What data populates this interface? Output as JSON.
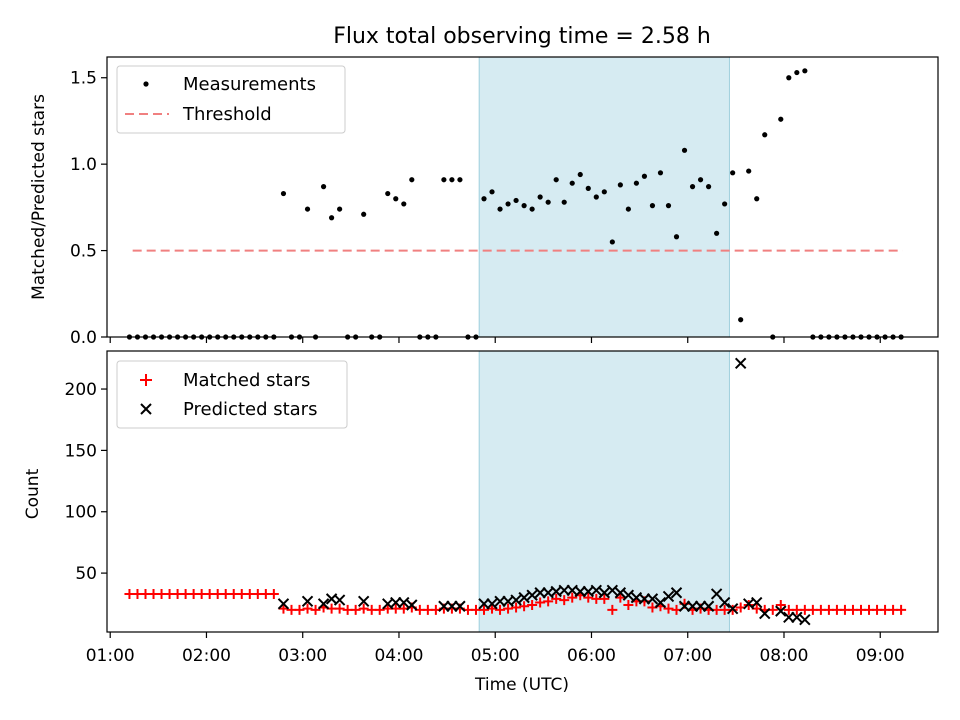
{
  "title": "Flux total observing time = 2.58 h",
  "chart_data": [
    {
      "type": "scatter",
      "panel": "top",
      "ylabel": "Matched/Predicted stars",
      "xlabel": "",
      "xlim": [
        "00:58",
        "09:36"
      ],
      "ylim": [
        0,
        1.62
      ],
      "yticks": [
        0.0,
        0.5,
        1.0,
        1.5
      ],
      "ytick_labels": [
        "0.0",
        "0.5",
        "1.0",
        "1.5"
      ],
      "shaded_interval": {
        "start": "04:50",
        "end": "07:26",
        "color": "#add8e6"
      },
      "legend": {
        "placement": "top-left",
        "entries": [
          {
            "label": "Measurements",
            "marker": "dot",
            "color": "#000000"
          },
          {
            "label": "Threshold",
            "marker": "dashed-line",
            "color": "#f08080"
          }
        ]
      },
      "threshold": {
        "y": 0.5,
        "x_start": "01:14",
        "x_end": "09:14"
      },
      "series": [
        {
          "name": "Measurements",
          "color": "#000000",
          "points": [
            [
              "01:12",
              0
            ],
            [
              "01:17",
              0
            ],
            [
              "01:22",
              0
            ],
            [
              "01:27",
              0
            ],
            [
              "01:32",
              0
            ],
            [
              "01:37",
              0
            ],
            [
              "01:42",
              0
            ],
            [
              "01:47",
              0
            ],
            [
              "01:52",
              0
            ],
            [
              "01:57",
              0
            ],
            [
              "02:02",
              0
            ],
            [
              "02:07",
              0
            ],
            [
              "02:12",
              0
            ],
            [
              "02:17",
              0
            ],
            [
              "02:22",
              0
            ],
            [
              "02:27",
              0
            ],
            [
              "02:32",
              0
            ],
            [
              "02:37",
              0
            ],
            [
              "02:42",
              0
            ],
            [
              "02:48",
              0.83
            ],
            [
              "02:53",
              0
            ],
            [
              "02:58",
              0
            ],
            [
              "03:03",
              0.74
            ],
            [
              "03:08",
              0
            ],
            [
              "03:13",
              0.87
            ],
            [
              "03:18",
              0.69
            ],
            [
              "03:23",
              0.74
            ],
            [
              "03:28",
              0
            ],
            [
              "03:33",
              0
            ],
            [
              "03:38",
              0.71
            ],
            [
              "03:43",
              0
            ],
            [
              "03:48",
              0
            ],
            [
              "03:53",
              0.83
            ],
            [
              "03:58",
              0.8
            ],
            [
              "04:03",
              0.77
            ],
            [
              "04:08",
              0.91
            ],
            [
              "04:13",
              0
            ],
            [
              "04:18",
              0
            ],
            [
              "04:23",
              0
            ],
            [
              "04:28",
              0.91
            ],
            [
              "04:33",
              0.91
            ],
            [
              "04:38",
              0.91
            ],
            [
              "04:43",
              0
            ],
            [
              "04:48",
              0
            ],
            [
              "04:53",
              0.8
            ],
            [
              "04:58",
              0.84
            ],
            [
              "05:03",
              0.74
            ],
            [
              "05:08",
              0.77
            ],
            [
              "05:13",
              0.79
            ],
            [
              "05:18",
              0.76
            ],
            [
              "05:23",
              0.74
            ],
            [
              "05:28",
              0.81
            ],
            [
              "05:33",
              0.78
            ],
            [
              "05:38",
              0.91
            ],
            [
              "05:43",
              0.78
            ],
            [
              "05:48",
              0.89
            ],
            [
              "05:53",
              0.94
            ],
            [
              "05:58",
              0.86
            ],
            [
              "06:03",
              0.81
            ],
            [
              "06:08",
              0.84
            ],
            [
              "06:13",
              0.55
            ],
            [
              "06:18",
              0.88
            ],
            [
              "06:23",
              0.74
            ],
            [
              "06:28",
              0.89
            ],
            [
              "06:33",
              0.93
            ],
            [
              "06:38",
              0.76
            ],
            [
              "06:43",
              0.95
            ],
            [
              "06:48",
              0.76
            ],
            [
              "06:53",
              0.58
            ],
            [
              "06:58",
              1.08
            ],
            [
              "07:03",
              0.87
            ],
            [
              "07:08",
              0.91
            ],
            [
              "07:13",
              0.87
            ],
            [
              "07:18",
              0.6
            ],
            [
              "07:23",
              0.77
            ],
            [
              "07:28",
              0.95
            ],
            [
              "07:33",
              0.1
            ],
            [
              "07:38",
              0.96
            ],
            [
              "07:43",
              0.8
            ],
            [
              "07:48",
              1.17
            ],
            [
              "07:53",
              0
            ],
            [
              "07:58",
              1.26
            ],
            [
              "08:03",
              1.5
            ],
            [
              "08:08",
              1.53
            ],
            [
              "08:13",
              1.54
            ],
            [
              "08:18",
              0
            ],
            [
              "08:23",
              0
            ],
            [
              "08:28",
              0
            ],
            [
              "08:33",
              0
            ],
            [
              "08:38",
              0
            ],
            [
              "08:43",
              0
            ],
            [
              "08:48",
              0
            ],
            [
              "08:53",
              0
            ],
            [
              "08:58",
              0
            ],
            [
              "09:03",
              0
            ],
            [
              "09:08",
              0
            ],
            [
              "09:13",
              0
            ]
          ]
        }
      ]
    },
    {
      "type": "scatter",
      "panel": "bottom",
      "xlabel": "Time (UTC)",
      "ylabel": "Count",
      "xlim": [
        "00:58",
        "09:36"
      ],
      "xticks": [
        "01:00",
        "02:00",
        "03:00",
        "04:00",
        "05:00",
        "06:00",
        "07:00",
        "08:00",
        "09:00"
      ],
      "ylim": [
        2,
        231
      ],
      "yticks": [
        50,
        100,
        150,
        200
      ],
      "ytick_labels": [
        "50",
        "100",
        "150",
        "200"
      ],
      "shaded_interval": {
        "start": "04:50",
        "end": "07:26",
        "color": "#add8e6"
      },
      "legend": {
        "placement": "top-left",
        "entries": [
          {
            "label": "Matched stars",
            "marker": "plus",
            "color": "#ff0000"
          },
          {
            "label": "Predicted stars",
            "marker": "x",
            "color": "#000000"
          }
        ]
      },
      "series": [
        {
          "name": "Matched stars",
          "marker": "plus",
          "color": "#ff0000",
          "points": [
            [
              "01:12",
              33
            ],
            [
              "01:17",
              33
            ],
            [
              "01:22",
              33
            ],
            [
              "01:27",
              33
            ],
            [
              "01:32",
              33
            ],
            [
              "01:37",
              33
            ],
            [
              "01:42",
              33
            ],
            [
              "01:47",
              33
            ],
            [
              "01:52",
              33
            ],
            [
              "01:57",
              33
            ],
            [
              "02:02",
              33
            ],
            [
              "02:07",
              33
            ],
            [
              "02:12",
              33
            ],
            [
              "02:17",
              33
            ],
            [
              "02:22",
              33
            ],
            [
              "02:27",
              33
            ],
            [
              "02:32",
              33
            ],
            [
              "02:37",
              33
            ],
            [
              "02:42",
              33
            ],
            [
              "02:48",
              21
            ],
            [
              "02:53",
              20
            ],
            [
              "02:58",
              20
            ],
            [
              "03:03",
              21
            ],
            [
              "03:08",
              20
            ],
            [
              "03:13",
              22
            ],
            [
              "03:18",
              21
            ],
            [
              "03:23",
              21
            ],
            [
              "03:28",
              20
            ],
            [
              "03:33",
              20
            ],
            [
              "03:38",
              21
            ],
            [
              "03:43",
              20
            ],
            [
              "03:48",
              20
            ],
            [
              "03:53",
              21
            ],
            [
              "03:58",
              21
            ],
            [
              "04:03",
              21
            ],
            [
              "04:08",
              22
            ],
            [
              "04:13",
              20
            ],
            [
              "04:18",
              20
            ],
            [
              "04:23",
              20
            ],
            [
              "04:28",
              21
            ],
            [
              "04:33",
              21
            ],
            [
              "04:38",
              21
            ],
            [
              "04:43",
              20
            ],
            [
              "04:48",
              20
            ],
            [
              "04:53",
              20
            ],
            [
              "04:58",
              21
            ],
            [
              "05:03",
              20
            ],
            [
              "05:08",
              21
            ],
            [
              "05:13",
              22
            ],
            [
              "05:18",
              23
            ],
            [
              "05:23",
              24
            ],
            [
              "05:28",
              26
            ],
            [
              "05:33",
              27
            ],
            [
              "05:38",
              29
            ],
            [
              "05:43",
              28
            ],
            [
              "05:48",
              30
            ],
            [
              "05:53",
              32
            ],
            [
              "05:58",
              30
            ],
            [
              "06:03",
              29
            ],
            [
              "06:08",
              29
            ],
            [
              "06:13",
              20
            ],
            [
              "06:18",
              30
            ],
            [
              "06:23",
              24
            ],
            [
              "06:28",
              27
            ],
            [
              "06:33",
              27
            ],
            [
              "06:38",
              22
            ],
            [
              "06:43",
              23
            ],
            [
              "06:48",
              21
            ],
            [
              "06:53",
              20
            ],
            [
              "06:58",
              25
            ],
            [
              "07:03",
              20
            ],
            [
              "07:08",
              21
            ],
            [
              "07:13",
              20
            ],
            [
              "07:18",
              20
            ],
            [
              "07:23",
              20
            ],
            [
              "07:28",
              20
            ],
            [
              "07:33",
              22
            ],
            [
              "07:38",
              24
            ],
            [
              "07:43",
              21
            ],
            [
              "07:48",
              20
            ],
            [
              "07:53",
              20
            ],
            [
              "07:58",
              24
            ],
            [
              "08:03",
              20
            ],
            [
              "08:08",
              20
            ],
            [
              "08:13",
              20
            ],
            [
              "08:18",
              20
            ],
            [
              "08:23",
              20
            ],
            [
              "08:28",
              20
            ],
            [
              "08:33",
              20
            ],
            [
              "08:38",
              20
            ],
            [
              "08:43",
              20
            ],
            [
              "08:48",
              20
            ],
            [
              "08:53",
              20
            ],
            [
              "08:58",
              20
            ],
            [
              "09:03",
              20
            ],
            [
              "09:08",
              20
            ],
            [
              "09:13",
              20
            ]
          ]
        },
        {
          "name": "Predicted stars",
          "marker": "x",
          "color": "#000000",
          "points": [
            [
              "02:48",
              25
            ],
            [
              "03:03",
              27
            ],
            [
              "03:13",
              25
            ],
            [
              "03:18",
              29
            ],
            [
              "03:23",
              28
            ],
            [
              "03:38",
              27
            ],
            [
              "03:53",
              25
            ],
            [
              "03:58",
              26
            ],
            [
              "04:03",
              26
            ],
            [
              "04:08",
              24
            ],
            [
              "04:28",
              23
            ],
            [
              "04:33",
              23
            ],
            [
              "04:38",
              23
            ],
            [
              "04:53",
              25
            ],
            [
              "04:58",
              25
            ],
            [
              "05:03",
              27
            ],
            [
              "05:08",
              27
            ],
            [
              "05:13",
              28
            ],
            [
              "05:18",
              30
            ],
            [
              "05:23",
              32
            ],
            [
              "05:28",
              34
            ],
            [
              "05:33",
              34
            ],
            [
              "05:38",
              35
            ],
            [
              "05:43",
              36
            ],
            [
              "05:48",
              36
            ],
            [
              "05:53",
              35
            ],
            [
              "05:58",
              35
            ],
            [
              "06:03",
              36
            ],
            [
              "06:08",
              34
            ],
            [
              "06:13",
              36
            ],
            [
              "06:18",
              34
            ],
            [
              "06:23",
              32
            ],
            [
              "06:28",
              30
            ],
            [
              "06:33",
              29
            ],
            [
              "06:38",
              29
            ],
            [
              "06:43",
              26
            ],
            [
              "06:48",
              31
            ],
            [
              "06:53",
              34
            ],
            [
              "06:58",
              23
            ],
            [
              "07:03",
              23
            ],
            [
              "07:08",
              23
            ],
            [
              "07:13",
              23
            ],
            [
              "07:18",
              33
            ],
            [
              "07:23",
              26
            ],
            [
              "07:28",
              21
            ],
            [
              "07:33",
              221
            ],
            [
              "07:38",
              25
            ],
            [
              "07:43",
              26
            ],
            [
              "07:48",
              17
            ],
            [
              "07:58",
              19
            ],
            [
              "08:03",
              14
            ],
            [
              "08:08",
              14
            ],
            [
              "08:13",
              12
            ]
          ]
        }
      ]
    }
  ]
}
